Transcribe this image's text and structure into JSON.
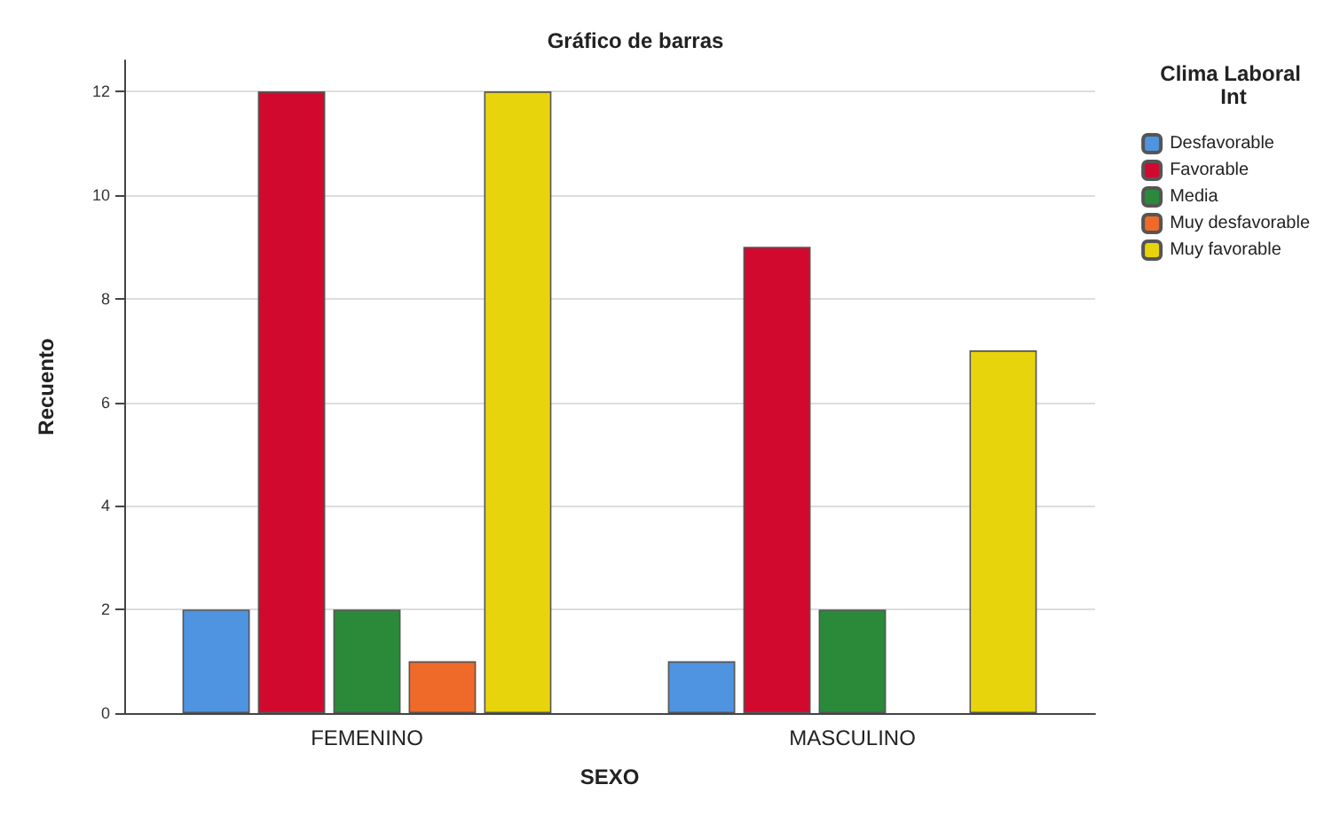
{
  "chart_data": {
    "type": "bar",
    "title": "Gráfico de barras",
    "xlabel": "SEXO",
    "ylabel": "Recuento",
    "legend_title": "Clima Laboral Int",
    "categories": [
      "FEMENINO",
      "MASCULINO"
    ],
    "series": [
      {
        "name": "Desfavorable",
        "color": "#4f94e0",
        "values": [
          2,
          1
        ]
      },
      {
        "name": "Favorable",
        "color": "#d2092f",
        "values": [
          12,
          9
        ]
      },
      {
        "name": "Media",
        "color": "#2a8a3a",
        "values": [
          2,
          2
        ]
      },
      {
        "name": "Muy desfavorable",
        "color": "#ef6a28",
        "values": [
          1,
          null
        ]
      },
      {
        "name": "Muy favorable",
        "color": "#e8d40c",
        "values": [
          12,
          7
        ]
      }
    ],
    "ylim": [
      0,
      12.6
    ],
    "yticks": [
      0,
      2,
      4,
      6,
      8,
      10,
      12
    ],
    "grid": "y",
    "legend": "right"
  }
}
